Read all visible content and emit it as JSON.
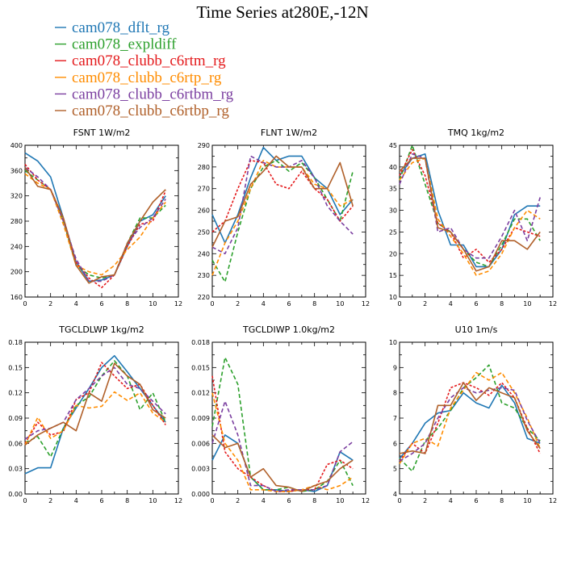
{
  "title": "Time Series at280E,-12N",
  "legend": [
    {
      "label": "cam078_dflt_rg",
      "color": "#1f77b4"
    },
    {
      "label": "cam078_expldiff",
      "color": "#2ca02c"
    },
    {
      "label": "cam078_clubb_c6rtm_rg",
      "color": "#e41a1c"
    },
    {
      "label": "cam078_clubb_c6rtp_rg",
      "color": "#ff8c00"
    },
    {
      "label": "cam078_clubb_c6rtbm_rg",
      "color": "#7b3fa0"
    },
    {
      "label": "cam078_clubb_c6rtbp_rg",
      "color": "#b0602a"
    }
  ],
  "chart_data": [
    {
      "type": "line",
      "title": "FSNT   1W/m2",
      "x": [
        0,
        1,
        2,
        3,
        4,
        5,
        6,
        7,
        8,
        9,
        10,
        11
      ],
      "xlim": [
        0,
        12
      ],
      "xticks": [
        0,
        2,
        4,
        6,
        8,
        10,
        12
      ],
      "ylim": [
        160,
        400
      ],
      "yticks": [
        160,
        200,
        240,
        280,
        320,
        360,
        400
      ],
      "series": [
        {
          "name": "cam078_dflt_rg",
          "values": [
            388,
            375,
            350,
            285,
            215,
            185,
            187,
            195,
            240,
            280,
            290,
            320
          ]
        },
        {
          "name": "cam078_expldiff",
          "values": [
            360,
            345,
            330,
            280,
            210,
            195,
            190,
            195,
            245,
            285,
            285,
            305
          ]
        },
        {
          "name": "cam078_clubb_c6rtm_rg",
          "values": [
            370,
            345,
            330,
            285,
            215,
            190,
            175,
            195,
            240,
            275,
            280,
            328
          ]
        },
        {
          "name": "cam078_clubb_c6rtp_rg",
          "values": [
            355,
            340,
            330,
            275,
            210,
            200,
            195,
            210,
            235,
            255,
            285,
            310
          ]
        },
        {
          "name": "cam078_clubb_c6rtbm_rg",
          "values": [
            365,
            350,
            330,
            280,
            220,
            185,
            185,
            195,
            245,
            270,
            285,
            315
          ]
        },
        {
          "name": "cam078_clubb_c6rtbp_rg",
          "values": [
            365,
            335,
            330,
            285,
            210,
            182,
            192,
            195,
            245,
            280,
            310,
            330
          ]
        }
      ]
    },
    {
      "type": "line",
      "title": "FLNT   1W/m2",
      "x": [
        0,
        1,
        2,
        3,
        4,
        5,
        6,
        7,
        8,
        9,
        10,
        11
      ],
      "xlim": [
        0,
        12
      ],
      "xticks": [
        0,
        2,
        4,
        6,
        8,
        10,
        12
      ],
      "ylim": [
        220,
        290
      ],
      "yticks": [
        220,
        230,
        240,
        250,
        260,
        270,
        280,
        290
      ],
      "series": [
        {
          "name": "cam078_dflt_rg",
          "values": [
            258,
            245,
            258,
            275,
            289,
            283,
            285,
            285,
            275,
            270,
            258,
            265
          ]
        },
        {
          "name": "cam078_expldiff",
          "values": [
            237,
            227,
            250,
            270,
            280,
            283,
            278,
            282,
            275,
            265,
            255,
            278
          ]
        },
        {
          "name": "cam078_clubb_c6rtm_rg",
          "values": [
            250,
            255,
            270,
            283,
            282,
            272,
            270,
            278,
            270,
            265,
            255,
            262
          ]
        },
        {
          "name": "cam078_clubb_c6rtp_rg",
          "values": [
            230,
            245,
            255,
            270,
            283,
            280,
            280,
            280,
            272,
            270,
            262,
            265
          ]
        },
        {
          "name": "cam078_clubb_c6rtbm_rg",
          "values": [
            243,
            240,
            252,
            285,
            282,
            280,
            280,
            283,
            275,
            262,
            255,
            249
          ]
        },
        {
          "name": "cam078_clubb_c6rtbp_rg",
          "values": [
            243,
            255,
            257,
            272,
            278,
            285,
            280,
            280,
            270,
            270,
            282,
            262
          ]
        }
      ]
    },
    {
      "type": "line",
      "title": "TMQ   1kg/m2",
      "x": [
        0,
        1,
        2,
        3,
        4,
        5,
        6,
        7,
        8,
        9,
        10,
        11
      ],
      "xlim": [
        0,
        12
      ],
      "xticks": [
        0,
        2,
        4,
        6,
        8,
        10,
        12
      ],
      "ylim": [
        10,
        45
      ],
      "yticks": [
        10,
        15,
        20,
        25,
        30,
        35,
        40,
        45
      ],
      "series": [
        {
          "name": "cam078_dflt_rg",
          "values": [
            38,
            42,
            43,
            30,
            22,
            22,
            17,
            17,
            21,
            29,
            31,
            31
          ]
        },
        {
          "name": "cam078_expldiff",
          "values": [
            37,
            45,
            36,
            27,
            25,
            21,
            18,
            17,
            22,
            28,
            28,
            23
          ]
        },
        {
          "name": "cam078_clubb_c6rtm_rg",
          "values": [
            38,
            44,
            38,
            27,
            25,
            19,
            21,
            18,
            21,
            26,
            25,
            24
          ]
        },
        {
          "name": "cam078_clubb_c6rtp_rg",
          "values": [
            37,
            41,
            42,
            28,
            24,
            20,
            15,
            16,
            20,
            26,
            30,
            28
          ]
        },
        {
          "name": "cam078_clubb_c6rtbm_rg",
          "values": [
            36,
            43,
            42,
            25,
            26,
            21,
            19,
            19,
            24,
            30,
            23,
            33
          ]
        },
        {
          "name": "cam078_clubb_c6rtbp_rg",
          "values": [
            39,
            42,
            42,
            26,
            25,
            21,
            16,
            17,
            23,
            23,
            21,
            25
          ]
        }
      ]
    },
    {
      "type": "line",
      "title": "TGCLDLWP   1kg/m2",
      "x": [
        0,
        1,
        2,
        3,
        4,
        5,
        6,
        7,
        8,
        9,
        10,
        11
      ],
      "xlim": [
        0,
        12
      ],
      "xticks": [
        0,
        2,
        4,
        6,
        8,
        10,
        12
      ],
      "ylim": [
        0,
        0.18
      ],
      "yticks": [
        0.0,
        0.03,
        0.06,
        0.09,
        0.12,
        0.15,
        0.18
      ],
      "series": [
        {
          "name": "cam078_dflt_rg",
          "values": [
            0.024,
            0.031,
            0.031,
            0.078,
            0.102,
            0.125,
            0.15,
            0.164,
            0.145,
            0.125,
            0.105,
            0.085
          ]
        },
        {
          "name": "cam078_expldiff",
          "values": [
            0.061,
            0.068,
            0.044,
            0.078,
            0.105,
            0.115,
            0.14,
            0.158,
            0.14,
            0.1,
            0.12,
            0.085
          ]
        },
        {
          "name": "cam078_clubb_c6rtm_rg",
          "values": [
            0.06,
            0.085,
            0.07,
            0.074,
            0.112,
            0.12,
            0.156,
            0.14,
            0.125,
            0.13,
            0.105,
            0.082
          ]
        },
        {
          "name": "cam078_clubb_c6rtp_rg",
          "values": [
            0.058,
            0.091,
            0.066,
            0.075,
            0.105,
            0.102,
            0.104,
            0.121,
            0.111,
            0.12,
            0.096,
            0.085
          ]
        },
        {
          "name": "cam078_clubb_c6rtbm_rg",
          "values": [
            0.065,
            0.075,
            0.078,
            0.085,
            0.112,
            0.125,
            0.14,
            0.15,
            0.13,
            0.125,
            0.11,
            0.095
          ]
        },
        {
          "name": "cam078_clubb_c6rtbp_rg",
          "values": [
            0.058,
            0.07,
            0.078,
            0.085,
            0.075,
            0.12,
            0.11,
            0.155,
            0.14,
            0.13,
            0.1,
            0.09
          ]
        }
      ]
    },
    {
      "type": "line",
      "title": "TGCLDIWP   1.0kg/m2",
      "x": [
        0,
        1,
        2,
        3,
        4,
        5,
        6,
        7,
        8,
        9,
        10,
        11
      ],
      "xlim": [
        0,
        12
      ],
      "xticks": [
        0,
        2,
        4,
        6,
        8,
        10,
        12
      ],
      "ylim": [
        0,
        0.018
      ],
      "yticks": [
        0.0,
        0.003,
        0.006,
        0.009,
        0.012,
        0.015,
        0.018
      ],
      "series": [
        {
          "name": "cam078_dflt_rg",
          "values": [
            0.004,
            0.007,
            0.006,
            0.002,
            0.0005,
            0.0005,
            0.0003,
            0.0005,
            0.0003,
            0.001,
            0.005,
            0.004
          ]
        },
        {
          "name": "cam078_expldiff",
          "values": [
            0.008,
            0.0162,
            0.013,
            0.002,
            0.0005,
            0.0005,
            0.0008,
            0.0003,
            0.0005,
            0.0015,
            0.004,
            0.001
          ]
        },
        {
          "name": "cam078_clubb_c6rtm_rg",
          "values": [
            0.014,
            0.005,
            0.003,
            0.002,
            0.001,
            0.0003,
            0.0003,
            0.0005,
            0.0005,
            0.0035,
            0.004,
            0.003
          ]
        },
        {
          "name": "cam078_clubb_c6rtp_rg",
          "values": [
            0.012,
            0.006,
            0.004,
            0.0005,
            0.0005,
            0.0003,
            0.0003,
            0.0005,
            0.001,
            0.0005,
            0.001,
            0.002
          ]
        },
        {
          "name": "cam078_clubb_c6rtbm_rg",
          "values": [
            0.006,
            0.011,
            0.007,
            0.001,
            0.001,
            0.0003,
            0.0005,
            0.0005,
            0.0005,
            0.001,
            0.005,
            0.0062
          ]
        },
        {
          "name": "cam078_clubb_c6rtbp_rg",
          "values": [
            0.007,
            0.0055,
            0.006,
            0.002,
            0.003,
            0.001,
            0.0008,
            0.0003,
            0.001,
            0.0015,
            0.003,
            0.004
          ]
        }
      ]
    },
    {
      "type": "line",
      "title": "U10   1m/s",
      "x": [
        0,
        1,
        2,
        3,
        4,
        5,
        6,
        7,
        8,
        9,
        10,
        11
      ],
      "xlim": [
        0,
        12
      ],
      "xticks": [
        0,
        2,
        4,
        6,
        8,
        10,
        12
      ],
      "ylim": [
        4,
        10
      ],
      "yticks": [
        4,
        5,
        6,
        7,
        8,
        9,
        10
      ],
      "series": [
        {
          "name": "cam078_dflt_rg",
          "values": [
            5.4,
            6.0,
            6.8,
            7.2,
            7.3,
            8.0,
            7.6,
            7.4,
            8.3,
            7.6,
            6.2,
            6.0
          ]
        },
        {
          "name": "cam078_expldiff",
          "values": [
            5.4,
            4.9,
            6.1,
            6.6,
            7.3,
            8.2,
            8.6,
            9.1,
            7.6,
            7.4,
            6.6,
            6.1
          ]
        },
        {
          "name": "cam078_clubb_c6rtm_rg",
          "values": [
            5.3,
            6.0,
            5.6,
            6.8,
            8.2,
            8.4,
            8.2,
            7.9,
            8.4,
            7.8,
            6.6,
            5.6
          ]
        },
        {
          "name": "cam078_clubb_c6rtp_rg",
          "values": [
            5.2,
            6.0,
            6.2,
            5.9,
            7.4,
            8.1,
            8.8,
            8.5,
            8.8,
            8.0,
            7.0,
            5.8
          ]
        },
        {
          "name": "cam078_clubb_c6rtbm_rg",
          "values": [
            5.3,
            5.6,
            6.0,
            7.0,
            7.8,
            8.2,
            8.0,
            8.1,
            8.2,
            8.1,
            6.9,
            6.0
          ]
        },
        {
          "name": "cam078_clubb_c6rtbp_rg",
          "values": [
            5.6,
            5.7,
            5.6,
            7.5,
            7.5,
            8.4,
            7.7,
            8.2,
            8.0,
            7.8,
            6.5,
            5.8
          ]
        }
      ]
    }
  ]
}
